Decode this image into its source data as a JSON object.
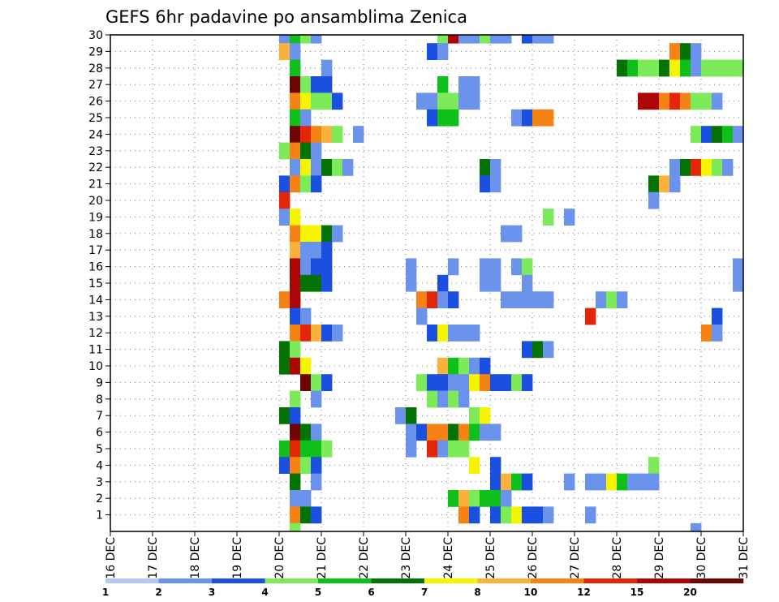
{
  "chart_data": {
    "type": "heatmap",
    "title": "GEFS 6hr padavine po ansamblima Zenica",
    "xlabel": "",
    "ylabel": "",
    "x_ticks": [
      "16 DEC",
      "17 DEC",
      "18 DEC",
      "19 DEC",
      "20 DEC",
      "21 DEC",
      "22 DEC",
      "23 DEC",
      "24 DEC",
      "25 DEC",
      "26 DEC",
      "27 DEC",
      "28 DEC",
      "29 DEC",
      "30 DEC",
      "31 DEC"
    ],
    "x_range": [
      0,
      15
    ],
    "y_ticks": [
      1,
      2,
      3,
      4,
      5,
      6,
      7,
      8,
      9,
      10,
      11,
      12,
      13,
      14,
      15,
      16,
      17,
      18,
      19,
      20,
      21,
      22,
      23,
      24,
      25,
      26,
      27,
      28,
      29,
      30
    ],
    "y_range": [
      0,
      30
    ],
    "grid": true,
    "colorbar": {
      "labels": [
        "1",
        "2",
        "3",
        "4",
        "5",
        "6",
        "7",
        "8",
        "10",
        "12",
        "15",
        "20"
      ],
      "colors": [
        "#b4c8f5",
        "#6c93ec",
        "#1a4fe0",
        "#7deb59",
        "#10c01a",
        "#047304",
        "#f5f500",
        "#f9b23c",
        "#f48214",
        "#e42608",
        "#ac0505",
        "#6d0505"
      ]
    },
    "cells": [
      [
        4,
        30,
        1
      ],
      [
        4.25,
        30,
        4
      ],
      [
        4.5,
        30,
        3
      ],
      [
        4.75,
        30,
        1
      ],
      [
        7.75,
        30,
        3
      ],
      [
        8,
        30,
        10
      ],
      [
        8.25,
        30,
        1
      ],
      [
        8.5,
        30,
        1
      ],
      [
        8.75,
        30,
        3
      ],
      [
        9,
        30,
        1
      ],
      [
        9.25,
        30,
        1
      ],
      [
        9.75,
        30,
        2
      ],
      [
        10,
        30,
        1
      ],
      [
        10.25,
        30,
        1
      ],
      [
        4,
        29,
        7
      ],
      [
        4.25,
        29,
        1
      ],
      [
        7.5,
        29,
        2
      ],
      [
        7.75,
        29,
        1
      ],
      [
        13.25,
        29,
        8
      ],
      [
        13.5,
        29,
        5
      ],
      [
        13.75,
        29,
        1
      ],
      [
        4.25,
        28,
        4
      ],
      [
        5,
        28,
        1
      ],
      [
        12,
        28,
        5
      ],
      [
        12.25,
        28,
        4
      ],
      [
        12.5,
        28,
        3
      ],
      [
        12.75,
        28,
        3
      ],
      [
        13,
        28,
        5
      ],
      [
        13.25,
        28,
        6
      ],
      [
        13.5,
        28,
        4
      ],
      [
        13.75,
        28,
        1
      ],
      [
        14,
        28,
        3
      ],
      [
        14.25,
        28,
        3
      ],
      [
        14.5,
        28,
        3
      ],
      [
        14.75,
        28,
        3
      ],
      [
        4.25,
        27,
        11
      ],
      [
        4.5,
        27,
        3
      ],
      [
        4.75,
        27,
        2
      ],
      [
        5,
        27,
        2
      ],
      [
        7.75,
        27,
        4
      ],
      [
        8.25,
        27,
        1
      ],
      [
        8.5,
        27,
        1
      ],
      [
        4.25,
        26,
        8
      ],
      [
        4.5,
        26,
        6
      ],
      [
        4.75,
        26,
        3
      ],
      [
        5,
        26,
        3
      ],
      [
        5.25,
        26,
        2
      ],
      [
        7.25,
        26,
        1
      ],
      [
        7.5,
        26,
        1
      ],
      [
        7.75,
        26,
        3
      ],
      [
        8,
        26,
        3
      ],
      [
        8.25,
        26,
        1
      ],
      [
        8.5,
        26,
        1
      ],
      [
        12.5,
        26,
        10
      ],
      [
        12.75,
        26,
        10
      ],
      [
        13,
        26,
        8
      ],
      [
        13.25,
        26,
        9
      ],
      [
        13.5,
        26,
        8
      ],
      [
        13.75,
        26,
        3
      ],
      [
        14,
        26,
        3
      ],
      [
        14.25,
        26,
        1
      ],
      [
        4.25,
        25,
        4
      ],
      [
        4.5,
        25,
        1
      ],
      [
        7.5,
        25,
        2
      ],
      [
        7.75,
        25,
        4
      ],
      [
        8,
        25,
        4
      ],
      [
        9.5,
        25,
        1
      ],
      [
        9.75,
        25,
        2
      ],
      [
        10,
        25,
        8
      ],
      [
        10.25,
        25,
        8
      ],
      [
        4.25,
        24,
        11
      ],
      [
        4.5,
        24,
        9
      ],
      [
        4.75,
        24,
        8
      ],
      [
        5,
        24,
        7
      ],
      [
        5.25,
        24,
        3
      ],
      [
        5.75,
        24,
        1
      ],
      [
        13.75,
        24,
        3
      ],
      [
        14,
        24,
        2
      ],
      [
        14.25,
        24,
        5
      ],
      [
        14.5,
        24,
        4
      ],
      [
        14.75,
        24,
        1
      ],
      [
        4,
        23,
        3
      ],
      [
        4.25,
        23,
        8
      ],
      [
        4.5,
        23,
        5
      ],
      [
        4.75,
        23,
        1
      ],
      [
        4.25,
        22,
        1
      ],
      [
        4.5,
        22,
        6
      ],
      [
        4.75,
        22,
        1
      ],
      [
        5,
        22,
        5
      ],
      [
        5.25,
        22,
        3
      ],
      [
        5.5,
        22,
        1
      ],
      [
        8.75,
        22,
        5
      ],
      [
        9,
        22,
        1
      ],
      [
        13.25,
        22,
        1
      ],
      [
        13.5,
        22,
        5
      ],
      [
        13.75,
        22,
        9
      ],
      [
        14,
        22,
        6
      ],
      [
        14.25,
        22,
        3
      ],
      [
        14.5,
        22,
        1
      ],
      [
        4,
        21,
        2
      ],
      [
        4.25,
        21,
        8
      ],
      [
        4.5,
        21,
        3
      ],
      [
        4.75,
        21,
        2
      ],
      [
        8.75,
        21,
        2
      ],
      [
        9,
        21,
        1
      ],
      [
        12.75,
        21,
        5
      ],
      [
        13,
        21,
        7
      ],
      [
        13.25,
        21,
        1
      ],
      [
        4,
        20,
        9
      ],
      [
        12.75,
        20,
        1
      ],
      [
        4,
        19,
        1
      ],
      [
        4.25,
        19,
        6
      ],
      [
        10.25,
        19,
        3
      ],
      [
        10.75,
        19,
        1
      ],
      [
        4.25,
        18,
        8
      ],
      [
        4.5,
        18,
        6
      ],
      [
        4.75,
        18,
        6
      ],
      [
        5,
        18,
        5
      ],
      [
        5.25,
        18,
        1
      ],
      [
        9.25,
        18,
        1
      ],
      [
        9.5,
        18,
        1
      ],
      [
        4.25,
        17,
        7
      ],
      [
        4.5,
        17,
        1
      ],
      [
        4.75,
        17,
        1
      ],
      [
        5,
        17,
        2
      ],
      [
        4.25,
        16,
        10
      ],
      [
        4.5,
        16,
        1
      ],
      [
        4.75,
        16,
        2
      ],
      [
        5,
        16,
        2
      ],
      [
        7,
        16,
        1
      ],
      [
        8,
        16,
        1
      ],
      [
        8.75,
        16,
        1
      ],
      [
        9,
        16,
        1
      ],
      [
        9.5,
        16,
        1
      ],
      [
        9.75,
        16,
        3
      ],
      [
        14.75,
        16,
        1
      ],
      [
        4.25,
        15,
        10
      ],
      [
        4.5,
        15,
        5
      ],
      [
        4.75,
        15,
        5
      ],
      [
        5,
        15,
        2
      ],
      [
        7,
        15,
        1
      ],
      [
        7.75,
        15,
        2
      ],
      [
        8.75,
        15,
        1
      ],
      [
        9,
        15,
        1
      ],
      [
        9.75,
        15,
        1
      ],
      [
        14.75,
        15,
        1
      ],
      [
        4,
        14,
        8
      ],
      [
        4.25,
        14,
        10
      ],
      [
        7.25,
        14,
        8
      ],
      [
        7.5,
        14,
        9
      ],
      [
        7.75,
        14,
        1
      ],
      [
        8,
        14,
        2
      ],
      [
        9.25,
        14,
        1
      ],
      [
        9.5,
        14,
        1
      ],
      [
        9.75,
        14,
        1
      ],
      [
        10,
        14,
        1
      ],
      [
        10.25,
        14,
        1
      ],
      [
        11.5,
        14,
        1
      ],
      [
        11.75,
        14,
        3
      ],
      [
        12,
        14,
        1
      ],
      [
        4.25,
        13,
        2
      ],
      [
        4.5,
        13,
        1
      ],
      [
        7.25,
        13,
        1
      ],
      [
        11.25,
        13,
        9
      ],
      [
        14.25,
        13,
        2
      ],
      [
        4.25,
        12,
        8
      ],
      [
        4.5,
        12,
        9
      ],
      [
        4.75,
        12,
        7
      ],
      [
        5,
        12,
        2
      ],
      [
        5.25,
        12,
        1
      ],
      [
        7.5,
        12,
        2
      ],
      [
        7.75,
        12,
        6
      ],
      [
        8,
        12,
        1
      ],
      [
        8.25,
        12,
        1
      ],
      [
        8.5,
        12,
        1
      ],
      [
        14,
        12,
        8
      ],
      [
        14.25,
        12,
        1
      ],
      [
        4,
        11,
        5
      ],
      [
        4.25,
        11,
        3
      ],
      [
        9.75,
        11,
        2
      ],
      [
        10,
        11,
        5
      ],
      [
        10.25,
        11,
        1
      ],
      [
        4,
        10,
        5
      ],
      [
        4.25,
        10,
        10
      ],
      [
        4.5,
        10,
        6
      ],
      [
        7.75,
        10,
        7
      ],
      [
        8,
        10,
        4
      ],
      [
        8.25,
        10,
        3
      ],
      [
        8.5,
        10,
        1
      ],
      [
        8.75,
        10,
        2
      ],
      [
        4.5,
        9,
        11
      ],
      [
        4.75,
        9,
        3
      ],
      [
        5,
        9,
        2
      ],
      [
        7.25,
        9,
        3
      ],
      [
        7.5,
        9,
        2
      ],
      [
        7.75,
        9,
        2
      ],
      [
        8,
        9,
        1
      ],
      [
        8.25,
        9,
        1
      ],
      [
        8.5,
        9,
        6
      ],
      [
        8.75,
        9,
        8
      ],
      [
        9,
        9,
        2
      ],
      [
        9.25,
        9,
        2
      ],
      [
        9.5,
        9,
        3
      ],
      [
        9.75,
        9,
        2
      ],
      [
        4.25,
        8,
        3
      ],
      [
        4.75,
        8,
        1
      ],
      [
        7.5,
        8,
        3
      ],
      [
        7.75,
        8,
        1
      ],
      [
        8,
        8,
        3
      ],
      [
        8.25,
        8,
        1
      ],
      [
        4,
        7,
        5
      ],
      [
        4.25,
        7,
        2
      ],
      [
        6.75,
        7,
        1
      ],
      [
        7,
        7,
        5
      ],
      [
        8.5,
        7,
        3
      ],
      [
        8.75,
        7,
        6
      ],
      [
        4.25,
        6,
        11
      ],
      [
        4.5,
        6,
        5
      ],
      [
        4.75,
        6,
        1
      ],
      [
        7,
        6,
        1
      ],
      [
        7.25,
        6,
        2
      ],
      [
        7.5,
        6,
        8
      ],
      [
        7.75,
        6,
        8
      ],
      [
        8,
        6,
        5
      ],
      [
        8.25,
        6,
        8
      ],
      [
        8.5,
        6,
        4
      ],
      [
        8.75,
        6,
        1
      ],
      [
        9,
        6,
        1
      ],
      [
        4,
        5,
        4
      ],
      [
        4.25,
        5,
        9
      ],
      [
        4.5,
        5,
        4
      ],
      [
        4.75,
        5,
        4
      ],
      [
        5,
        5,
        3
      ],
      [
        7,
        5,
        1
      ],
      [
        7.5,
        5,
        9
      ],
      [
        7.75,
        5,
        1
      ],
      [
        8,
        5,
        3
      ],
      [
        8.25,
        5,
        3
      ],
      [
        4,
        4,
        2
      ],
      [
        4.25,
        4,
        8
      ],
      [
        4.5,
        4,
        3
      ],
      [
        4.75,
        4,
        2
      ],
      [
        8.5,
        4,
        6
      ],
      [
        9,
        4,
        2
      ],
      [
        12.75,
        4,
        3
      ],
      [
        4.25,
        3,
        5
      ],
      [
        4.75,
        3,
        1
      ],
      [
        9,
        3,
        2
      ],
      [
        9.25,
        3,
        7
      ],
      [
        9.5,
        3,
        4
      ],
      [
        9.75,
        3,
        2
      ],
      [
        10.75,
        3,
        1
      ],
      [
        11.25,
        3,
        1
      ],
      [
        11.5,
        3,
        1
      ],
      [
        11.75,
        3,
        6
      ],
      [
        12,
        3,
        4
      ],
      [
        12.25,
        3,
        1
      ],
      [
        12.5,
        3,
        1
      ],
      [
        12.75,
        3,
        1
      ],
      [
        4.25,
        2,
        1
      ],
      [
        4.5,
        2,
        1
      ],
      [
        8,
        2,
        4
      ],
      [
        8.25,
        2,
        7
      ],
      [
        8.5,
        2,
        3
      ],
      [
        8.75,
        2,
        4
      ],
      [
        9,
        2,
        4
      ],
      [
        9.25,
        2,
        1
      ],
      [
        4.25,
        1,
        8
      ],
      [
        4.5,
        1,
        5
      ],
      [
        4.75,
        1,
        2
      ],
      [
        8.25,
        1,
        8
      ],
      [
        8.5,
        1,
        2
      ],
      [
        9,
        1,
        2
      ],
      [
        9.25,
        1,
        3
      ],
      [
        9.5,
        1,
        6
      ],
      [
        9.75,
        1,
        2
      ],
      [
        10,
        1,
        2
      ],
      [
        10.25,
        1,
        1
      ],
      [
        11.25,
        1,
        1
      ],
      [
        4.25,
        0,
        3
      ],
      [
        13.75,
        0,
        1
      ]
    ]
  }
}
